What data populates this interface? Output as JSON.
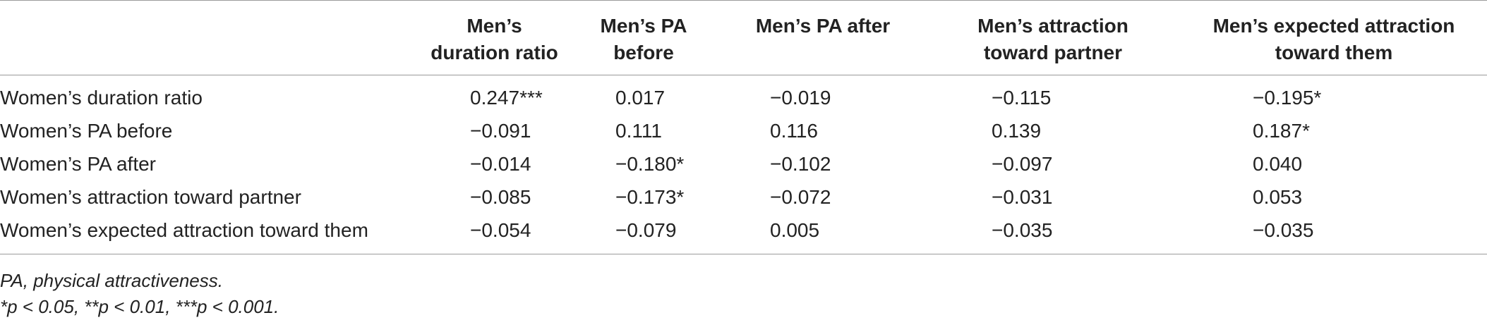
{
  "table": {
    "columns": [
      "",
      "Men’s duration ratio",
      "Men’s PA before",
      "Men’s PA after",
      "Men’s attraction toward partner",
      "Men’s expected attraction toward them"
    ],
    "column_lines": [
      [
        ""
      ],
      [
        "Men’s",
        "duration ratio"
      ],
      [
        "Men’s PA",
        "before"
      ],
      [
        "Men’s PA after"
      ],
      [
        "Men’s attraction",
        "toward partner"
      ],
      [
        "Men’s expected attraction",
        "toward them"
      ]
    ],
    "rows": [
      {
        "label": "Women’s duration ratio",
        "cells": [
          "0.247***",
          "0.017",
          "−0.019",
          "−0.115",
          "−0.195*"
        ]
      },
      {
        "label": "Women’s PA before",
        "cells": [
          "−0.091",
          "0.111",
          "0.116",
          "0.139",
          "0.187*"
        ]
      },
      {
        "label": "Women’s PA after",
        "cells": [
          "−0.014",
          "−0.180*",
          "−0.102",
          "−0.097",
          "0.040"
        ]
      },
      {
        "label": "Women’s attraction toward partner",
        "cells": [
          "−0.085",
          "−0.173*",
          "−0.072",
          "−0.031",
          "0.053"
        ]
      },
      {
        "label": "Women’s expected attraction toward them",
        "cells": [
          "−0.054",
          "−0.079",
          "0.005",
          "−0.035",
          "−0.035"
        ]
      }
    ]
  },
  "notes": {
    "abbreviation": "PA, physical attractiveness.",
    "significance": "*p < 0.05, **p < 0.01, ***p < 0.001."
  }
}
